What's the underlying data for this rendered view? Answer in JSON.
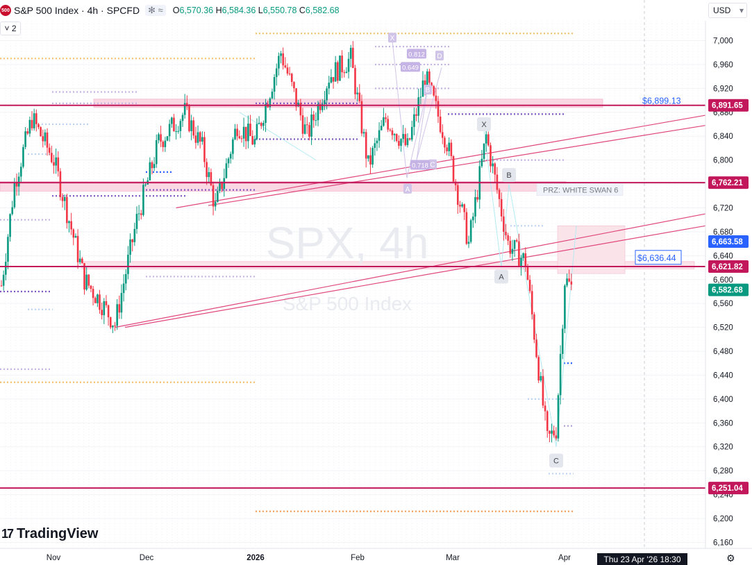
{
  "header": {
    "symbol_badge": "500",
    "title": "S&P 500 Index · 4h · SPCFD",
    "icons_text": "✻ ≈",
    "open": "6,570.36",
    "high": "6,584.36",
    "low": "6,550.78",
    "close": "6,582.68",
    "o": "O",
    "h": "H",
    "l": "L",
    "c": "C"
  },
  "toolbar": {
    "collapse_label": "˅ 2",
    "currency": "USD",
    "currency_caret": "▾"
  },
  "watermark": {
    "big": "SPX, 4h",
    "small": "S&P 500 Index"
  },
  "brand": {
    "mark": "17",
    "name": "TradingView"
  },
  "crosshair_date": "Thu 23 Apr '26   18:30",
  "settings_icon": "⚙",
  "colors": {
    "up": "#089981",
    "down": "#f23645",
    "level": "#c2185b",
    "pattern": "#b39ddb"
  },
  "chart_data": {
    "type": "candlestick",
    "title": "S&P 500 Index · 4h · SPCFD",
    "x_ticks": [
      "Nov",
      "Dec",
      "2026",
      "Feb",
      "Mar",
      "Apr"
    ],
    "y_ticks": [
      7000,
      6960,
      6920,
      6880,
      6840,
      6800,
      6760,
      6720,
      6680,
      6640,
      6600,
      6560,
      6520,
      6480,
      6440,
      6400,
      6360,
      6320,
      6280,
      6240,
      6200,
      6160
    ],
    "ylim": [
      6145,
      7070
    ],
    "price_path": [
      [
        0,
        6590
      ],
      [
        6,
        6760
      ],
      [
        14,
        6870
      ],
      [
        24,
        6800
      ],
      [
        38,
        6600
      ],
      [
        46,
        6560
      ],
      [
        52,
        6525
      ],
      [
        62,
        6700
      ],
      [
        72,
        6830
      ],
      [
        84,
        6880
      ],
      [
        92,
        6820
      ],
      [
        98,
        6720
      ],
      [
        108,
        6860
      ],
      [
        116,
        6830
      ],
      [
        128,
        6980
      ],
      [
        140,
        6840
      ],
      [
        150,
        6940
      ],
      [
        160,
        6970
      ],
      [
        168,
        6790
      ],
      [
        176,
        6870
      ],
      [
        186,
        6820
      ],
      [
        194,
        6940
      ],
      [
        204,
        6830
      ],
      [
        214,
        6660
      ],
      [
        222,
        6840
      ],
      [
        232,
        6660
      ],
      [
        240,
        6630
      ],
      [
        250,
        6330
      ],
      [
        254,
        6350
      ],
      [
        258,
        6600
      ],
      [
        262,
        6582
      ]
    ],
    "total_bars": 262,
    "horizontal_levels": [
      {
        "price": 6891.65,
        "label": "6,891.65"
      },
      {
        "price": 6762.21,
        "label": "6,762.21"
      },
      {
        "price": 6621.82,
        "label": "6,621.82"
      },
      {
        "price": 6251.04,
        "label": "6,251.04"
      }
    ],
    "price_tags": [
      {
        "price": 6663.58,
        "label": "6,663.58",
        "color": "#2962ff"
      },
      {
        "price": 6582.68,
        "label": "6,582.68",
        "color": "#089981"
      }
    ],
    "annotations": {
      "price_6899": "$6,899.13",
      "price_6636": "$6,636.44",
      "prz": "PRZ: WHITE SWAN 6",
      "pattern_points": [
        "X",
        "A",
        "B",
        "C",
        "D"
      ],
      "fib_labels": [
        "0.812",
        "0.649",
        "0.718"
      ],
      "wave_points": [
        "X",
        "A",
        "B",
        "C"
      ]
    },
    "trendlines": [
      {
        "from": [
          52,
          6520
        ],
        "to": [
          262,
          6690
        ]
      },
      {
        "from": [
          80,
          6720
        ],
        "to": [
          262,
          6855
        ]
      }
    ]
  }
}
